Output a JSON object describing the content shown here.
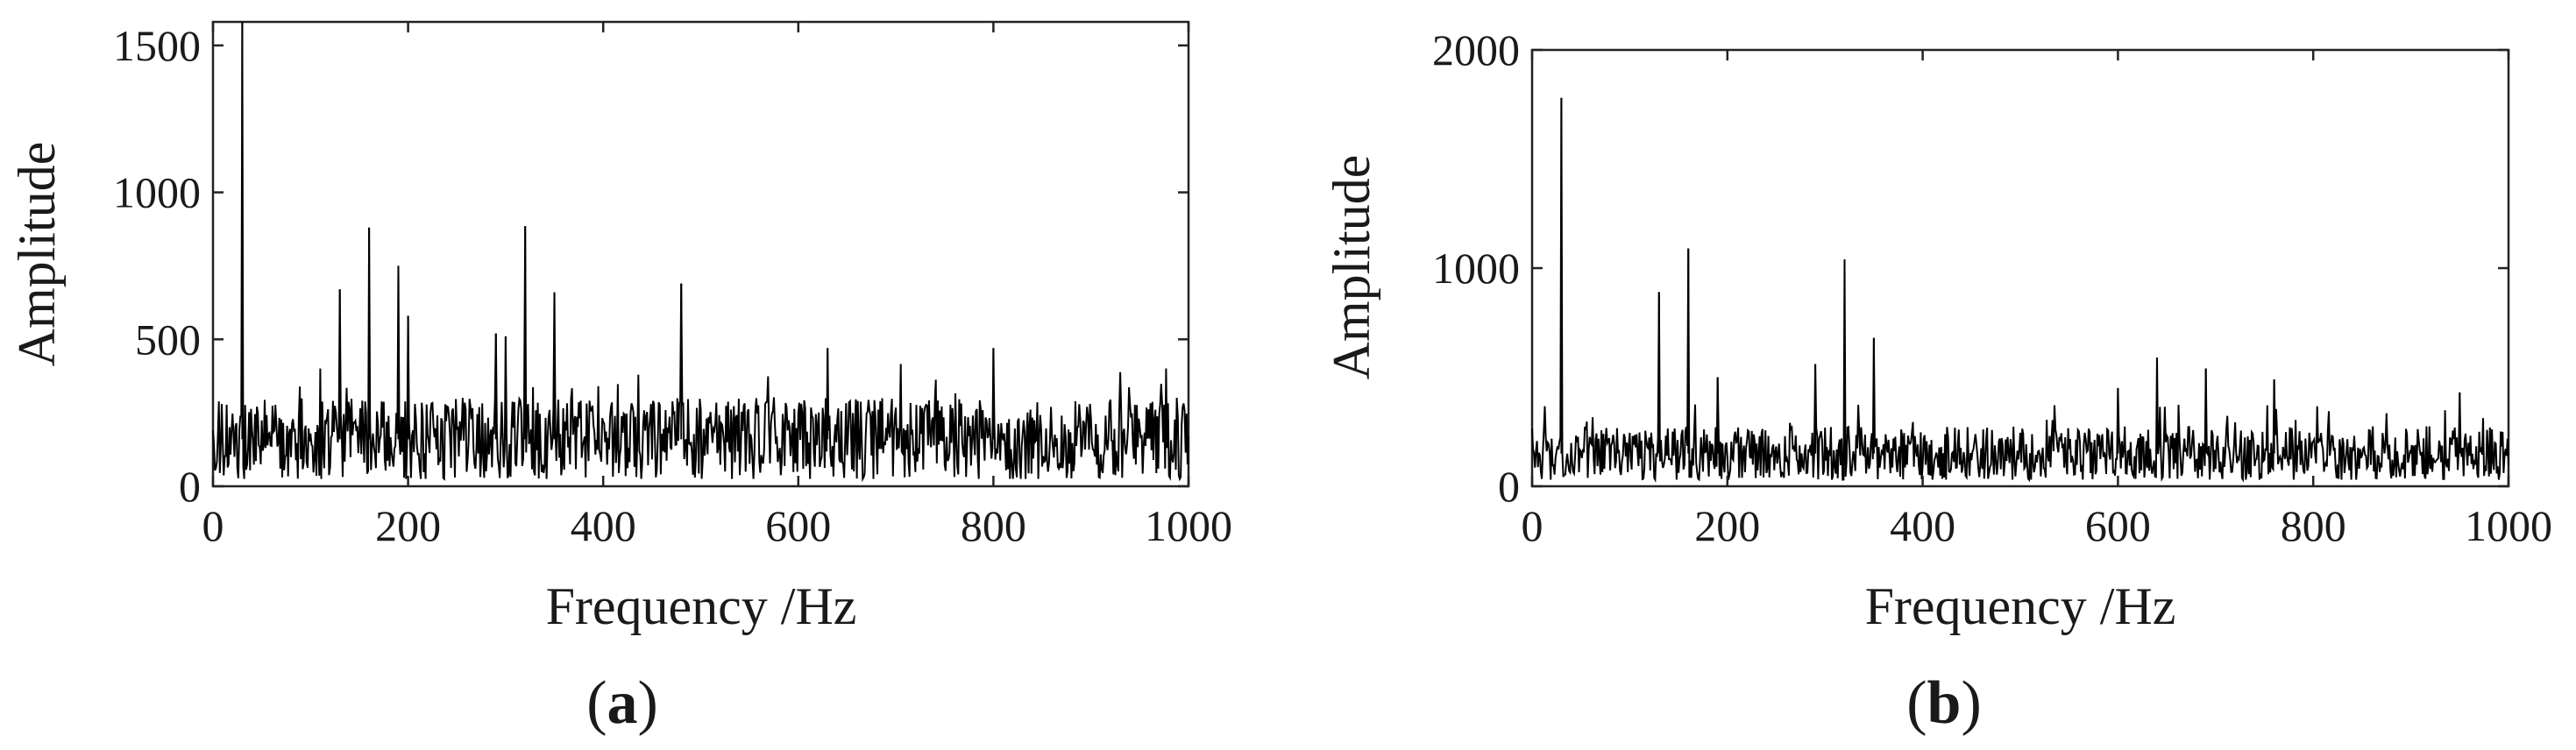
{
  "chart_data": [
    {
      "id": "a",
      "type": "line",
      "panel_label": "a",
      "xlabel": "Frequency /Hz",
      "ylabel": "Amplitude",
      "xlim": [
        0,
        1000
      ],
      "ylim": [
        0,
        1580
      ],
      "xticks": [
        0,
        200,
        400,
        600,
        800,
        1000
      ],
      "yticks": [
        0,
        500,
        1000,
        1500
      ],
      "grid": false,
      "noise_floor": {
        "min": 25,
        "max": 420,
        "mean": 160
      },
      "peaks": [
        {
          "x": 30,
          "y": 1580
        },
        {
          "x": 130,
          "y": 670
        },
        {
          "x": 160,
          "y": 880
        },
        {
          "x": 190,
          "y": 750
        },
        {
          "x": 200,
          "y": 580
        },
        {
          "x": 290,
          "y": 520
        },
        {
          "x": 300,
          "y": 510
        },
        {
          "x": 320,
          "y": 885
        },
        {
          "x": 350,
          "y": 660
        },
        {
          "x": 480,
          "y": 690
        },
        {
          "x": 630,
          "y": 470
        },
        {
          "x": 800,
          "y": 470
        }
      ]
    },
    {
      "id": "b",
      "type": "line",
      "panel_label": "b",
      "xlabel": "Frequency /Hz",
      "ylabel": "Amplitude",
      "xlim": [
        0,
        1000
      ],
      "ylim": [
        0,
        2000
      ],
      "xticks": [
        0,
        200,
        400,
        600,
        800,
        1000
      ],
      "yticks": [
        0,
        1000,
        2000
      ],
      "grid": false,
      "noise_floor": {
        "min": 30,
        "max": 380,
        "mean": 150
      },
      "peaks": [
        {
          "x": 30,
          "y": 1780
        },
        {
          "x": 130,
          "y": 890
        },
        {
          "x": 160,
          "y": 1090
        },
        {
          "x": 190,
          "y": 500
        },
        {
          "x": 290,
          "y": 560
        },
        {
          "x": 320,
          "y": 1040
        },
        {
          "x": 350,
          "y": 680
        },
        {
          "x": 600,
          "y": 450
        },
        {
          "x": 640,
          "y": 590
        },
        {
          "x": 690,
          "y": 540
        },
        {
          "x": 760,
          "y": 490
        },
        {
          "x": 950,
          "y": 430
        }
      ]
    }
  ]
}
